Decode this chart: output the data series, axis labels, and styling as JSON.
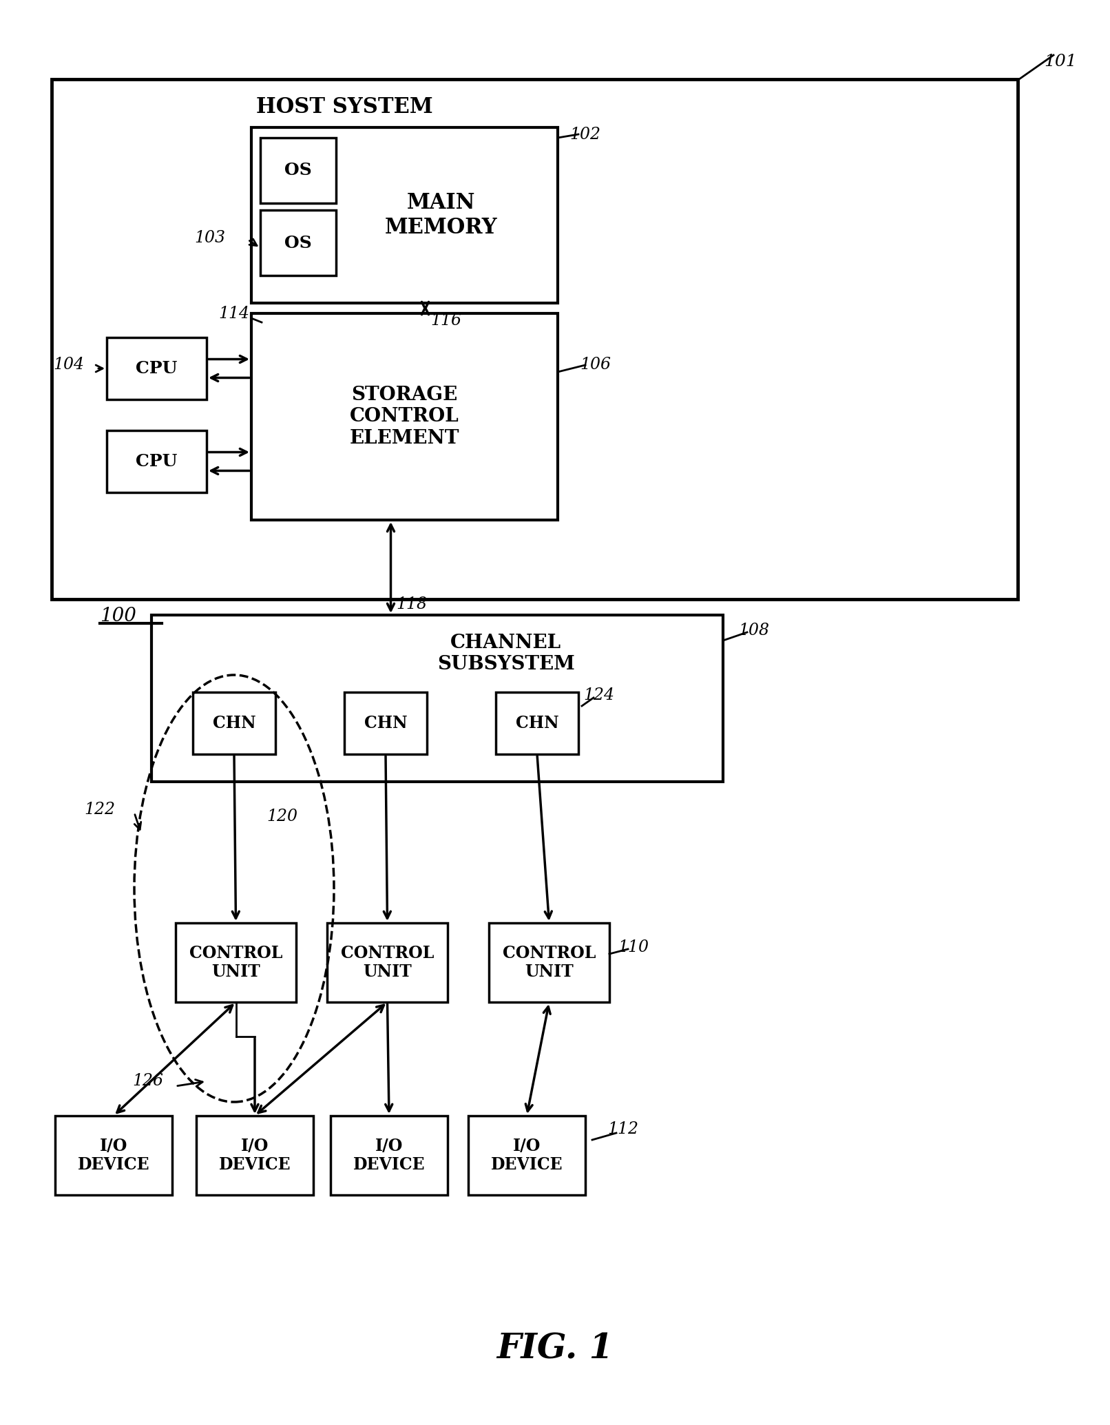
{
  "bg_color": "#ffffff",
  "title": "FIG. 1",
  "host_label": "HOST SYSTEM",
  "main_memory_label": "MAIN\nMEMORY",
  "os_label": "OS",
  "storage_ctrl_label": "STORAGE\nCONTROL\nELEMENT",
  "cpu_label": "CPU",
  "channel_sub_label": "CHANNEL\nSUBSYSTEM",
  "chn_label": "CHN",
  "ctrl_unit_label": "CONTROL\nUNIT",
  "io_label": "I/O\nDEVICE",
  "ref_101": "101",
  "ref_102": "102",
  "ref_103": "103",
  "ref_104": "104",
  "ref_106": "106",
  "ref_108": "108",
  "ref_110": "110",
  "ref_112": "112",
  "ref_114": "114",
  "ref_116": "116",
  "ref_118": "118",
  "ref_120": "120",
  "ref_122": "122",
  "ref_124": "124",
  "ref_126": "126",
  "ref_100": "100"
}
